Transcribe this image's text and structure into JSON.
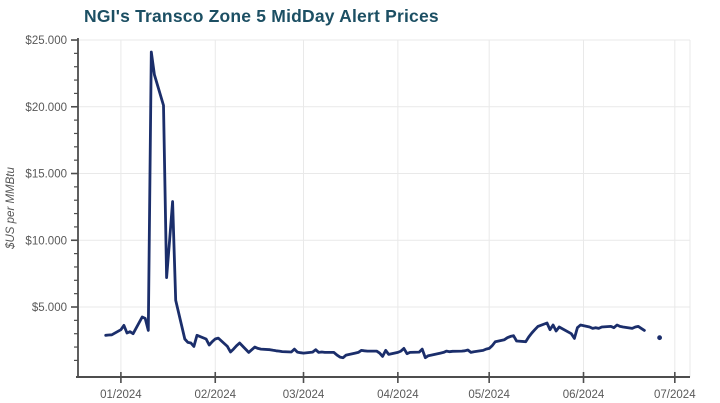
{
  "page": {
    "background": "#ffffff"
  },
  "chart_data": {
    "type": "line",
    "title": "NGI's Transco Zone 5 MidDay Alert Prices",
    "title_color": "#1c4f63",
    "xlabel": "",
    "ylabel": "$US per MMBtu",
    "ylim": [
      0,
      25
    ],
    "y_major_tick_step": 5,
    "y_minor_tick_step": 1,
    "grid": true,
    "legend": "none",
    "line_color": "#1b2e6b",
    "axis_color": "#4d4d4d",
    "grid_color": "#e9e9e9",
    "tick_label_color": "#595959",
    "y_ticks": [
      {
        "label": "$25.000",
        "value": 25
      },
      {
        "label": "$20.000",
        "value": 20
      },
      {
        "label": "$15.000",
        "value": 15
      },
      {
        "label": "$10.000",
        "value": 10
      },
      {
        "label": "$5.000",
        "value": 5
      }
    ],
    "x_ticks": [
      {
        "label": "01/2024",
        "date": "2024-01-01"
      },
      {
        "label": "02/2024",
        "date": "2024-02-01"
      },
      {
        "label": "03/2024",
        "date": "2024-03-01"
      },
      {
        "label": "04/2024",
        "date": "2024-04-01"
      },
      {
        "label": "05/2024",
        "date": "2024-05-01"
      },
      {
        "label": "06/2024",
        "date": "2024-06-01"
      },
      {
        "label": "07/2024",
        "date": "2024-07-01"
      }
    ],
    "x_range": [
      "2023-12-18",
      "2024-07-06"
    ],
    "series": [
      {
        "name": "Transco Zone 5 MidDay Alert price",
        "points": [
          [
            "2023-12-27",
            2.88
          ],
          [
            "2023-12-28",
            2.9
          ],
          [
            "2023-12-29",
            2.92
          ],
          [
            "2024-01-01",
            3.3
          ],
          [
            "2024-01-02",
            3.62
          ],
          [
            "2024-01-03",
            3.05
          ],
          [
            "2024-01-04",
            3.15
          ],
          [
            "2024-01-05",
            3.0
          ],
          [
            "2024-01-08",
            4.25
          ],
          [
            "2024-01-09",
            4.15
          ],
          [
            "2024-01-10",
            3.25
          ],
          [
            "2024-01-11",
            24.1
          ],
          [
            "2024-01-12",
            22.4
          ],
          [
            "2024-01-15",
            20.1
          ],
          [
            "2024-01-16",
            7.2
          ],
          [
            "2024-01-17",
            10.0
          ],
          [
            "2024-01-18",
            12.9
          ],
          [
            "2024-01-19",
            5.5
          ],
          [
            "2024-01-22",
            2.6
          ],
          [
            "2024-01-23",
            2.35
          ],
          [
            "2024-01-24",
            2.3
          ],
          [
            "2024-01-25",
            2.05
          ],
          [
            "2024-01-26",
            2.88
          ],
          [
            "2024-01-29",
            2.6
          ],
          [
            "2024-01-30",
            2.15
          ],
          [
            "2024-01-31",
            2.4
          ],
          [
            "2024-02-01",
            2.6
          ],
          [
            "2024-02-02",
            2.67
          ],
          [
            "2024-02-05",
            2.05
          ],
          [
            "2024-02-06",
            1.63
          ],
          [
            "2024-02-07",
            1.85
          ],
          [
            "2024-02-08",
            2.1
          ],
          [
            "2024-02-09",
            2.3
          ],
          [
            "2024-02-12",
            1.6
          ],
          [
            "2024-02-13",
            1.8
          ],
          [
            "2024-02-14",
            2.0
          ],
          [
            "2024-02-15",
            1.9
          ],
          [
            "2024-02-16",
            1.85
          ],
          [
            "2024-02-19",
            1.8
          ],
          [
            "2024-02-20",
            1.76
          ],
          [
            "2024-02-21",
            1.72
          ],
          [
            "2024-02-22",
            1.7
          ],
          [
            "2024-02-23",
            1.66
          ],
          [
            "2024-02-26",
            1.63
          ],
          [
            "2024-02-27",
            1.85
          ],
          [
            "2024-02-28",
            1.62
          ],
          [
            "2024-02-29",
            1.58
          ],
          [
            "2024-03-01",
            1.55
          ],
          [
            "2024-03-04",
            1.62
          ],
          [
            "2024-03-05",
            1.8
          ],
          [
            "2024-03-06",
            1.6
          ],
          [
            "2024-03-07",
            1.63
          ],
          [
            "2024-03-08",
            1.6
          ],
          [
            "2024-03-11",
            1.6
          ],
          [
            "2024-03-12",
            1.4
          ],
          [
            "2024-03-13",
            1.25
          ],
          [
            "2024-03-14",
            1.2
          ],
          [
            "2024-03-15",
            1.4
          ],
          [
            "2024-03-18",
            1.55
          ],
          [
            "2024-03-19",
            1.6
          ],
          [
            "2024-03-20",
            1.75
          ],
          [
            "2024-03-21",
            1.72
          ],
          [
            "2024-03-22",
            1.7
          ],
          [
            "2024-03-25",
            1.7
          ],
          [
            "2024-03-26",
            1.55
          ],
          [
            "2024-03-27",
            1.3
          ],
          [
            "2024-03-28",
            1.75
          ],
          [
            "2024-03-29",
            1.45
          ],
          [
            "2024-04-01",
            1.6
          ],
          [
            "2024-04-02",
            1.7
          ],
          [
            "2024-04-03",
            1.9
          ],
          [
            "2024-04-04",
            1.5
          ],
          [
            "2024-04-05",
            1.6
          ],
          [
            "2024-04-08",
            1.62
          ],
          [
            "2024-04-09",
            1.85
          ],
          [
            "2024-04-10",
            1.2
          ],
          [
            "2024-04-11",
            1.35
          ],
          [
            "2024-04-12",
            1.4
          ],
          [
            "2024-04-15",
            1.55
          ],
          [
            "2024-04-16",
            1.6
          ],
          [
            "2024-04-17",
            1.7
          ],
          [
            "2024-04-18",
            1.65
          ],
          [
            "2024-04-19",
            1.68
          ],
          [
            "2024-04-22",
            1.7
          ],
          [
            "2024-04-23",
            1.72
          ],
          [
            "2024-04-24",
            1.78
          ],
          [
            "2024-04-25",
            1.6
          ],
          [
            "2024-04-26",
            1.65
          ],
          [
            "2024-04-29",
            1.75
          ],
          [
            "2024-04-30",
            1.85
          ],
          [
            "2024-05-01",
            1.9
          ],
          [
            "2024-05-02",
            2.1
          ],
          [
            "2024-05-03",
            2.4
          ],
          [
            "2024-05-06",
            2.55
          ],
          [
            "2024-05-07",
            2.7
          ],
          [
            "2024-05-08",
            2.8
          ],
          [
            "2024-05-09",
            2.85
          ],
          [
            "2024-05-10",
            2.45
          ],
          [
            "2024-05-13",
            2.4
          ],
          [
            "2024-05-14",
            2.75
          ],
          [
            "2024-05-15",
            3.05
          ],
          [
            "2024-05-16",
            3.3
          ],
          [
            "2024-05-17",
            3.55
          ],
          [
            "2024-05-20",
            3.8
          ],
          [
            "2024-05-21",
            3.3
          ],
          [
            "2024-05-22",
            3.65
          ],
          [
            "2024-05-23",
            3.2
          ],
          [
            "2024-05-24",
            3.5
          ],
          [
            "2024-05-28",
            3.0
          ],
          [
            "2024-05-29",
            2.65
          ],
          [
            "2024-05-30",
            3.45
          ],
          [
            "2024-05-31",
            3.65
          ],
          [
            "2024-06-03",
            3.5
          ],
          [
            "2024-06-04",
            3.4
          ],
          [
            "2024-06-05",
            3.45
          ],
          [
            "2024-06-06",
            3.4
          ],
          [
            "2024-06-07",
            3.5
          ],
          [
            "2024-06-10",
            3.55
          ],
          [
            "2024-06-11",
            3.45
          ],
          [
            "2024-06-12",
            3.65
          ],
          [
            "2024-06-13",
            3.55
          ],
          [
            "2024-06-14",
            3.5
          ],
          [
            "2024-06-17",
            3.4
          ],
          [
            "2024-06-18",
            3.5
          ],
          [
            "2024-06-19",
            3.55
          ],
          [
            "2024-06-20",
            3.4
          ],
          [
            "2024-06-21",
            3.25
          ]
        ]
      }
    ],
    "detached_points": [
      [
        "2024-06-26",
        2.7
      ]
    ]
  }
}
